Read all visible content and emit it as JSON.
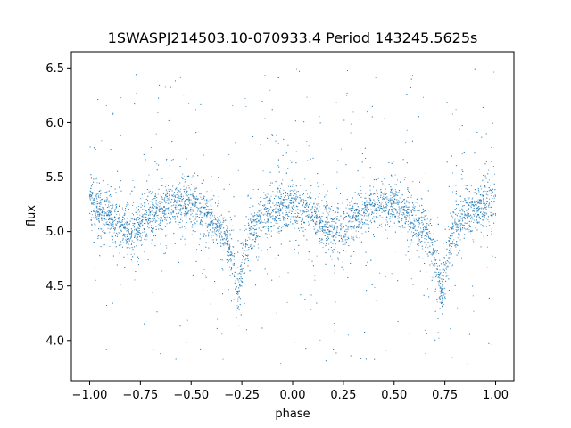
{
  "chart_data": {
    "type": "scatter",
    "title": "1SWASPJ214503.10-070933.4 Period 143245.5625s",
    "xlabel": "phase",
    "ylabel": "flux",
    "xlim": [
      -1.09,
      1.09
    ],
    "ylim": [
      3.63,
      6.65
    ],
    "xticks": [
      -1.0,
      -0.75,
      -0.5,
      -0.25,
      0.0,
      0.25,
      0.5,
      0.75,
      1.0
    ],
    "xtick_labels": [
      "−1.00",
      "−0.75",
      "−0.50",
      "−0.25",
      "0.00",
      "0.25",
      "0.50",
      "0.75",
      "1.00"
    ],
    "yticks": [
      4.0,
      4.5,
      5.0,
      5.5,
      6.0,
      6.5
    ],
    "ytick_labels": [
      "4.0",
      "4.5",
      "5.0",
      "5.5",
      "6.0",
      "6.5"
    ],
    "grid": false,
    "point_color": "#1f77b4",
    "series": [
      {
        "phase_range": [
          -1.0,
          1.0
        ],
        "phase": [
          -1.0,
          -0.9,
          -0.8,
          -0.7,
          -0.6,
          -0.5,
          -0.4,
          -0.33,
          -0.29,
          -0.27,
          -0.25,
          -0.21,
          -0.15,
          -0.1,
          0.0,
          0.1,
          0.2,
          0.25,
          0.3,
          0.4,
          0.5,
          0.6,
          0.67,
          0.71,
          0.73,
          0.75,
          0.79,
          0.85,
          0.9,
          1.0
        ],
        "flux_median": [
          5.25,
          5.15,
          5.0,
          5.15,
          5.25,
          5.25,
          5.1,
          4.95,
          4.7,
          4.4,
          4.65,
          5.0,
          5.15,
          5.2,
          5.25,
          5.15,
          5.0,
          5.0,
          5.15,
          5.25,
          5.25,
          5.1,
          4.95,
          4.7,
          4.4,
          4.65,
          5.0,
          5.15,
          5.2,
          5.25
        ]
      }
    ]
  }
}
